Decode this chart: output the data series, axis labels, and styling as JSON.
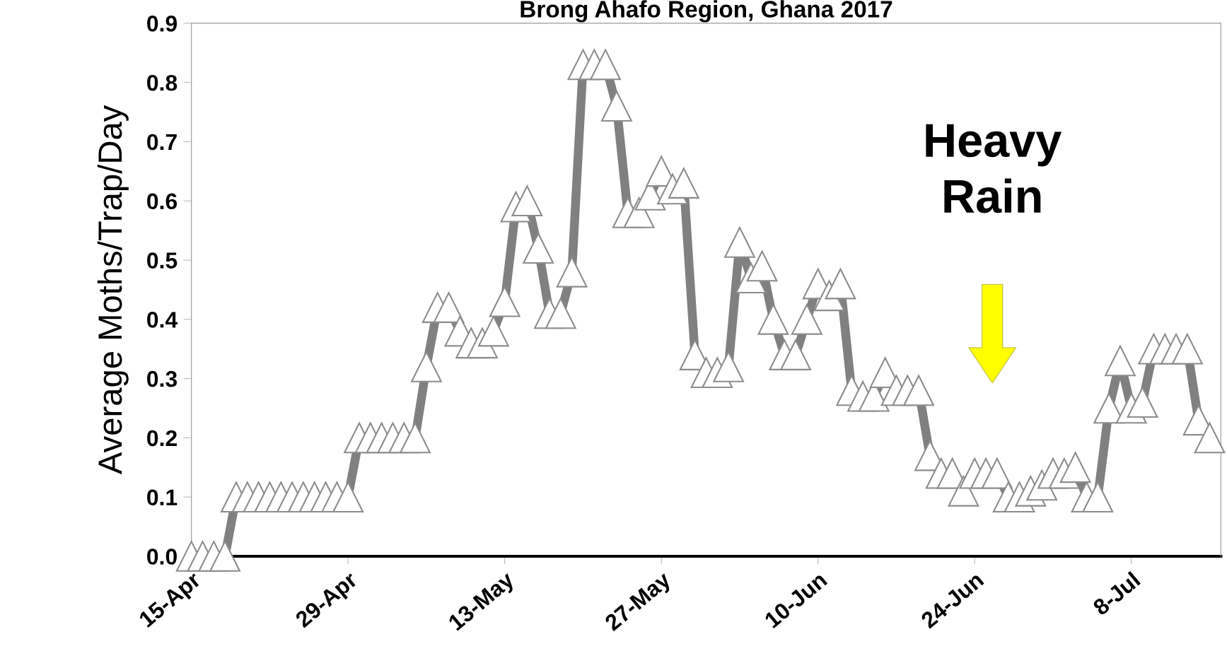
{
  "chart_data": {
    "type": "line",
    "title": "Brong Ahafo Region, Ghana 2017",
    "ylabel": "Average Moths/Trap/Day",
    "x": [
      "2017-04-15",
      "2017-04-16",
      "2017-04-17",
      "2017-04-18",
      "2017-04-19",
      "2017-04-20",
      "2017-04-21",
      "2017-04-22",
      "2017-04-23",
      "2017-04-24",
      "2017-04-25",
      "2017-04-26",
      "2017-04-27",
      "2017-04-28",
      "2017-04-29",
      "2017-04-30",
      "2017-05-01",
      "2017-05-02",
      "2017-05-03",
      "2017-05-04",
      "2017-05-05",
      "2017-05-06",
      "2017-05-07",
      "2017-05-08",
      "2017-05-09",
      "2017-05-10",
      "2017-05-11",
      "2017-05-12",
      "2017-05-13",
      "2017-05-14",
      "2017-05-15",
      "2017-05-16",
      "2017-05-17",
      "2017-05-18",
      "2017-05-19",
      "2017-05-20",
      "2017-05-21",
      "2017-05-22",
      "2017-05-23",
      "2017-05-24",
      "2017-05-25",
      "2017-05-26",
      "2017-05-27",
      "2017-05-28",
      "2017-05-29",
      "2017-05-30",
      "2017-05-31",
      "2017-06-01",
      "2017-06-02",
      "2017-06-03",
      "2017-06-04",
      "2017-06-05",
      "2017-06-06",
      "2017-06-07",
      "2017-06-08",
      "2017-06-09",
      "2017-06-10",
      "2017-06-11",
      "2017-06-12",
      "2017-06-13",
      "2017-06-14",
      "2017-06-15",
      "2017-06-16",
      "2017-06-17",
      "2017-06-18",
      "2017-06-19",
      "2017-06-20",
      "2017-06-21",
      "2017-06-22",
      "2017-06-23",
      "2017-06-24",
      "2017-06-25",
      "2017-06-26",
      "2017-06-27",
      "2017-06-28",
      "2017-06-29",
      "2017-06-30",
      "2017-07-01",
      "2017-07-02",
      "2017-07-03",
      "2017-07-04",
      "2017-07-05",
      "2017-07-06",
      "2017-07-07",
      "2017-07-08",
      "2017-07-09",
      "2017-07-10",
      "2017-07-11",
      "2017-07-12",
      "2017-07-13",
      "2017-07-14",
      "2017-07-15"
    ],
    "series": [
      {
        "color": "#808080",
        "values": [
          0,
          0,
          0,
          0,
          0.1,
          0.1,
          0.1,
          0.1,
          0.1,
          0.1,
          0.1,
          0.1,
          0.1,
          0.1,
          0.1,
          0.2,
          0.2,
          0.2,
          0.2,
          0.2,
          0.2,
          0.32,
          0.42,
          0.42,
          0.38,
          0.36,
          0.36,
          0.38,
          0.43,
          0.59,
          0.6,
          0.52,
          0.41,
          0.41,
          0.48,
          0.83,
          0.83,
          0.83,
          0.76,
          0.58,
          0.58,
          0.61,
          0.65,
          0.62,
          0.63,
          0.34,
          0.31,
          0.31,
          0.32,
          0.53,
          0.47,
          0.49,
          0.4,
          0.34,
          0.34,
          0.4,
          0.46,
          0.44,
          0.46,
          0.28,
          0.27,
          0.27,
          0.31,
          0.28,
          0.28,
          0.28,
          0.17,
          0.14,
          0.14,
          0.11,
          0.14,
          0.14,
          0.14,
          0.1,
          0.1,
          0.11,
          0.12,
          0.14,
          0.14,
          0.15,
          0.1,
          0.1,
          0.25,
          0.33,
          0.25,
          0.26,
          0.35,
          0.35,
          0.35,
          0.35,
          0.23,
          0.2
        ]
      }
    ],
    "xlim": [
      "2017-04-15",
      "2017-07-16"
    ],
    "xticks": [
      {
        "value": "2017-04-15",
        "label": "15-Apr"
      },
      {
        "value": "2017-04-29",
        "label": "29-Apr"
      },
      {
        "value": "2017-05-13",
        "label": "13-May"
      },
      {
        "value": "2017-05-27",
        "label": "27-May"
      },
      {
        "value": "2017-06-10",
        "label": "10-Jun"
      },
      {
        "value": "2017-06-24",
        "label": "24-Jun"
      },
      {
        "value": "2017-07-08",
        "label": "8-Jul"
      }
    ],
    "ylim": [
      0,
      0.9
    ],
    "yticks": [
      {
        "value": 0,
        "label": "0.0"
      },
      {
        "value": 0.1,
        "label": "0.1"
      },
      {
        "value": 0.2,
        "label": "0.2"
      },
      {
        "value": 0.3,
        "label": "0.3"
      },
      {
        "value": 0.4,
        "label": "0.4"
      },
      {
        "value": 0.5,
        "label": "0.5"
      },
      {
        "value": 0.6,
        "label": "0.6"
      },
      {
        "value": 0.7,
        "label": "0.7"
      },
      {
        "value": 0.8,
        "label": "0.8"
      },
      {
        "value": 0.9,
        "label": "0.9"
      }
    ],
    "annotations": [
      "Heavy\nRain"
    ],
    "marker": "triangle",
    "line_style": "solid",
    "grid": false,
    "legend": false
  }
}
